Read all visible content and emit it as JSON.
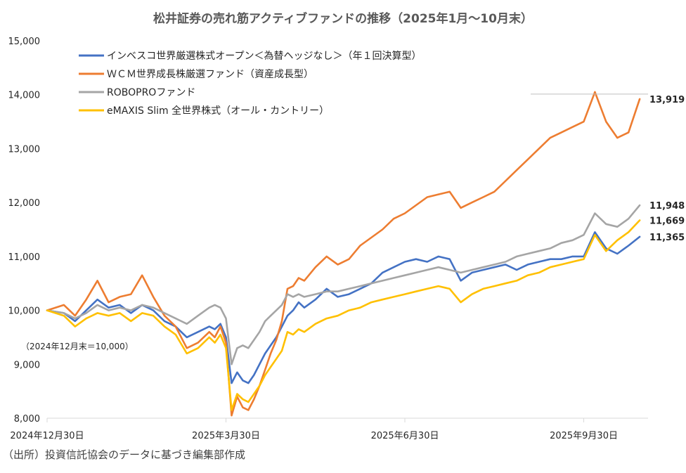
{
  "chart_data": {
    "type": "line",
    "title": "松井証券の売れ筋アクティブファンドの推移（2025年1月〜10月末）",
    "ylim": [
      8000,
      15000
    ],
    "yticks": [
      8000,
      9000,
      10000,
      11000,
      12000,
      13000,
      14000,
      15000
    ],
    "ytick_labels": [
      "8,000",
      "9,000",
      "10,000",
      "11,000",
      "12,000",
      "13,000",
      "14,000",
      "15,000"
    ],
    "xlim": [
      0,
      215
    ],
    "xticks": [
      {
        "t": 0,
        "label": "2024年12月30日"
      },
      {
        "t": 64,
        "label": "2025年3月30日"
      },
      {
        "t": 128,
        "label": "2025年6月30日"
      },
      {
        "t": 192,
        "label": "2025年9月30日"
      }
    ],
    "xlabel": "",
    "ylabel": "",
    "legend_position": "top-left",
    "base_note": "（2024年12月末＝10,000）",
    "source_note": "（出所）投資信託協会のデータに基づき編集部作成",
    "series": [
      {
        "name": "インベスコ世界厳選株式オープン＜為替ヘッジなし＞（年１回決算型）",
        "color": "#4472C4",
        "end_label": "11,365",
        "x": [
          0,
          6,
          10,
          14,
          18,
          22,
          26,
          30,
          34,
          38,
          42,
          46,
          50,
          54,
          58,
          60,
          62,
          64,
          66,
          68,
          70,
          72,
          74,
          76,
          78,
          80,
          82,
          84,
          86,
          88,
          90,
          92,
          96,
          100,
          104,
          108,
          112,
          116,
          120,
          124,
          128,
          132,
          136,
          140,
          144,
          148,
          152,
          156,
          160,
          164,
          168,
          172,
          176,
          180,
          184,
          188,
          192,
          196,
          200,
          204,
          208,
          212
        ],
        "values": [
          10000,
          9950,
          9800,
          10000,
          10200,
          10050,
          10100,
          9950,
          10100,
          10000,
          9800,
          9700,
          9500,
          9600,
          9700,
          9650,
          9750,
          9500,
          8650,
          8850,
          8700,
          8650,
          8800,
          9000,
          9200,
          9350,
          9500,
          9700,
          9900,
          10000,
          10150,
          10050,
          10200,
          10400,
          10250,
          10300,
          10400,
          10500,
          10700,
          10800,
          10900,
          10950,
          10900,
          11000,
          10950,
          10550,
          10700,
          10750,
          10800,
          10850,
          10750,
          10850,
          10900,
          10950,
          10950,
          11000,
          11000,
          11450,
          11150,
          11050,
          11200,
          11365
        ]
      },
      {
        "name": "ＷＣＭ世界成長株厳選ファンド（資産成長型）",
        "color": "#ED7D31",
        "end_label": "13,919",
        "x": [
          0,
          6,
          10,
          14,
          18,
          22,
          26,
          30,
          34,
          38,
          42,
          46,
          50,
          54,
          58,
          60,
          62,
          64,
          66,
          68,
          70,
          72,
          74,
          76,
          78,
          80,
          82,
          84,
          86,
          88,
          90,
          92,
          96,
          100,
          104,
          108,
          112,
          116,
          120,
          124,
          128,
          132,
          136,
          140,
          144,
          148,
          152,
          156,
          160,
          164,
          168,
          172,
          176,
          180,
          184,
          188,
          192,
          196,
          200,
          204,
          208,
          212
        ],
        "values": [
          10000,
          10100,
          9900,
          10200,
          10550,
          10150,
          10250,
          10300,
          10650,
          10250,
          9900,
          9700,
          9300,
          9400,
          9600,
          9500,
          9700,
          9400,
          8050,
          8400,
          8200,
          8150,
          8350,
          8600,
          8900,
          9200,
          9450,
          9800,
          10400,
          10450,
          10600,
          10550,
          10800,
          11000,
          10850,
          10950,
          11200,
          11350,
          11500,
          11700,
          11800,
          11950,
          12100,
          12150,
          12200,
          11900,
          12000,
          12100,
          12200,
          12400,
          12600,
          12800,
          13000,
          13200,
          13300,
          13400,
          13500,
          14050,
          13500,
          13200,
          13300,
          13919
        ]
      },
      {
        "name": "ROBOPROファンド",
        "color": "#A5A5A5",
        "end_label": "11,948",
        "x": [
          0,
          6,
          10,
          14,
          18,
          22,
          26,
          30,
          34,
          38,
          42,
          46,
          50,
          54,
          58,
          60,
          62,
          64,
          66,
          68,
          70,
          72,
          74,
          76,
          78,
          80,
          82,
          84,
          86,
          88,
          90,
          92,
          96,
          100,
          104,
          108,
          112,
          116,
          120,
          124,
          128,
          132,
          136,
          140,
          144,
          148,
          152,
          156,
          160,
          164,
          168,
          172,
          176,
          180,
          184,
          188,
          192,
          196,
          200,
          204,
          208,
          212
        ],
        "values": [
          10000,
          9950,
          9850,
          9950,
          10100,
          10000,
          10050,
          10000,
          10100,
          10050,
          9950,
          9850,
          9750,
          9900,
          10050,
          10100,
          10050,
          9850,
          9000,
          9300,
          9350,
          9300,
          9450,
          9600,
          9800,
          9900,
          10000,
          10100,
          10300,
          10250,
          10300,
          10250,
          10300,
          10350,
          10350,
          10400,
          10450,
          10500,
          10550,
          10600,
          10650,
          10700,
          10750,
          10800,
          10750,
          10700,
          10750,
          10800,
          10850,
          10900,
          11000,
          11050,
          11100,
          11150,
          11250,
          11300,
          11400,
          11800,
          11600,
          11550,
          11700,
          11948
        ]
      },
      {
        "name": "eMAXIS Slim 全世界株式（オール・カントリー）",
        "color": "#FFC000",
        "end_label": "11,669",
        "x": [
          0,
          6,
          10,
          14,
          18,
          22,
          26,
          30,
          34,
          38,
          42,
          46,
          50,
          54,
          58,
          60,
          62,
          64,
          66,
          68,
          70,
          72,
          74,
          76,
          78,
          80,
          82,
          84,
          86,
          88,
          90,
          92,
          96,
          100,
          104,
          108,
          112,
          116,
          120,
          124,
          128,
          132,
          136,
          140,
          144,
          148,
          152,
          156,
          160,
          164,
          168,
          172,
          176,
          180,
          184,
          188,
          192,
          196,
          200,
          204,
          208,
          212
        ],
        "values": [
          10000,
          9900,
          9700,
          9850,
          9950,
          9900,
          9950,
          9800,
          9950,
          9900,
          9700,
          9550,
          9200,
          9300,
          9500,
          9400,
          9550,
          9300,
          8150,
          8450,
          8350,
          8300,
          8450,
          8600,
          8800,
          8950,
          9100,
          9250,
          9600,
          9550,
          9650,
          9600,
          9750,
          9850,
          9900,
          10000,
          10050,
          10150,
          10200,
          10250,
          10300,
          10350,
          10400,
          10450,
          10400,
          10150,
          10300,
          10400,
          10450,
          10500,
          10550,
          10650,
          10700,
          10800,
          10850,
          10900,
          10950,
          11400,
          11100,
          11300,
          11450,
          11669
        ]
      }
    ]
  },
  "colors": {
    "background": "#FFFFFF",
    "axis": "#D9D9D9",
    "text": "#262626"
  }
}
